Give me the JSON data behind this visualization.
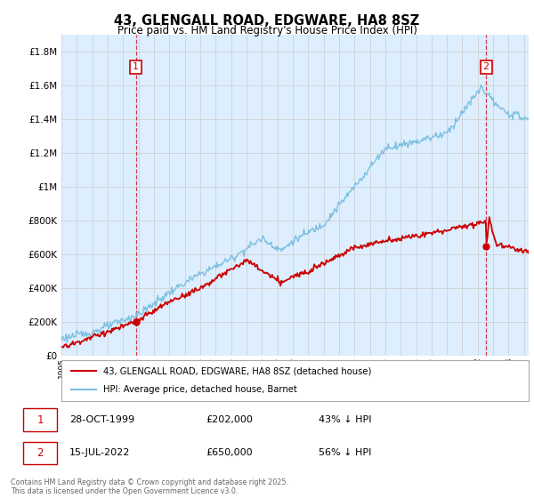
{
  "title": "43, GLENGALL ROAD, EDGWARE, HA8 8SZ",
  "subtitle": "Price paid vs. HM Land Registry's House Price Index (HPI)",
  "legend_line1": "43, GLENGALL ROAD, EDGWARE, HA8 8SZ (detached house)",
  "legend_line2": "HPI: Average price, detached house, Barnet",
  "footer": "Contains HM Land Registry data © Crown copyright and database right 2025.\nThis data is licensed under the Open Government Licence v3.0.",
  "sale1_label": "1",
  "sale1_date": "28-OCT-1999",
  "sale1_price": "£202,000",
  "sale1_hpi": "43% ↓ HPI",
  "sale2_label": "2",
  "sale2_date": "15-JUL-2022",
  "sale2_price": "£650,000",
  "sale2_hpi": "56% ↓ HPI",
  "hpi_color": "#7bbfdf",
  "price_color": "#cc0000",
  "vline_color": "#cc0000",
  "grid_color": "#cccccc",
  "background_color": "#ffffff",
  "plot_bg_color": "#ddeeff",
  "ylim": [
    0,
    1900000
  ],
  "yticks": [
    0,
    200000,
    400000,
    600000,
    800000,
    1000000,
    1200000,
    1400000,
    1600000,
    1800000
  ],
  "sale1_x": 1999.83,
  "sale1_y": 202000,
  "sale2_x": 2022.54,
  "sale2_y": 650000,
  "xlim_start": 1995.0,
  "xlim_end": 2025.3
}
